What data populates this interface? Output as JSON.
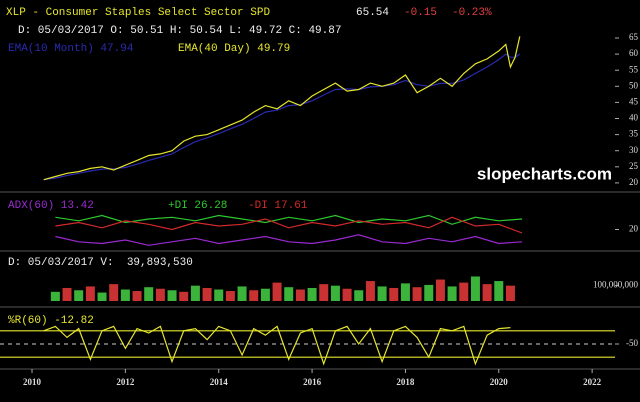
{
  "chart_data": [
    {
      "type": "line",
      "title": "XLP - Consumer Staples Select Sector SPD",
      "quote": {
        "last": "65.54",
        "change": "-0.15",
        "change_pct": "-0.23%"
      },
      "ohlc": "D: 05/03/2017 O: 50.51 H: 50.54 L: 49.72 C: 49.87",
      "watermark": "slopecharts.com",
      "xlim": [
        2009.314,
        2022.49
      ],
      "ylim": [
        17.8,
        76.8
      ],
      "yticks": [
        20,
        25,
        30,
        35,
        40,
        45,
        50,
        55,
        60,
        65
      ],
      "x": [
        2010.25,
        2010.5,
        2010.75,
        2011,
        2011.25,
        2011.5,
        2011.75,
        2012,
        2012.25,
        2012.5,
        2012.75,
        2013,
        2013.25,
        2013.5,
        2013.75,
        2014,
        2014.25,
        2014.5,
        2014.75,
        2015,
        2015.25,
        2015.5,
        2015.75,
        2016,
        2016.25,
        2016.5,
        2016.75,
        2017,
        2017.25,
        2017.5,
        2017.75,
        2018,
        2018.25,
        2018.5,
        2018.75,
        2019,
        2019.25,
        2019.5,
        2019.75,
        2020,
        2020.15,
        2020.25,
        2020.35,
        2020.45
      ],
      "series": [
        {
          "name": "EMA(10 Month) 47.94",
          "color": "#2a2ab0",
          "values": [
            21,
            21.5,
            22.3,
            23,
            23.7,
            24.3,
            24.4,
            24.8,
            25.8,
            27,
            28,
            29,
            31,
            32.8,
            34,
            35.3,
            36.8,
            38.2,
            40,
            42,
            42.6,
            44,
            44.3,
            45.5,
            47.3,
            49,
            49.2,
            49,
            49.8,
            50,
            50.5,
            51.8,
            50.5,
            50,
            50.9,
            50.9,
            52,
            54,
            56,
            58.3,
            60,
            59,
            59,
            60
          ]
        },
        {
          "name": "EMA(40 Day) 49.79",
          "color": "#e6e62e",
          "values": [
            21,
            22,
            23,
            23.5,
            24.5,
            25,
            24,
            25.5,
            27,
            28.5,
            29,
            30,
            33,
            34.5,
            35,
            36.5,
            38,
            39.5,
            42,
            44,
            43,
            45.5,
            44,
            47,
            49,
            51,
            48.5,
            49,
            51,
            50,
            51,
            53.5,
            48,
            50,
            52.5,
            50,
            54,
            57,
            58.5,
            61,
            63,
            56,
            59,
            65.5
          ]
        }
      ]
    },
    {
      "type": "line",
      "xlim": [
        2009.314,
        2022.49
      ],
      "ylim": [
        10,
        38
      ],
      "yticks": [
        20
      ],
      "x": [
        2010.5,
        2011,
        2011.5,
        2012,
        2012.5,
        2013,
        2013.5,
        2014,
        2014.5,
        2015,
        2015.5,
        2016,
        2016.5,
        2017,
        2017.5,
        2018,
        2018.5,
        2019,
        2019.5,
        2020,
        2020.5
      ],
      "series": [
        {
          "name": "ADX(60) 13.42",
          "color": "#9a2ad0",
          "values": [
            16,
            13,
            12,
            14,
            11,
            13,
            15,
            12,
            14,
            16,
            13,
            12,
            14,
            17,
            13,
            12,
            15,
            13,
            16,
            12,
            13
          ]
        },
        {
          "name": "+DI 26.28",
          "color": "#2ec82e",
          "values": [
            27,
            25,
            28,
            24,
            26,
            27,
            25,
            28,
            26,
            24,
            27,
            25,
            28,
            24,
            26,
            25,
            28,
            23,
            27,
            25,
            26
          ]
        },
        {
          "name": "-DI 17.61",
          "color": "#d22a2a",
          "values": [
            22,
            24,
            21,
            25,
            23,
            20,
            24,
            22,
            23,
            26,
            21,
            24,
            22,
            25,
            23,
            24,
            21,
            27,
            22,
            23,
            18
          ]
        }
      ]
    },
    {
      "type": "bar",
      "title": "D: 05/03/2017 V:  39,893,530",
      "xlim": [
        2009.314,
        2022.49
      ],
      "ylim": [
        0,
        300000000
      ],
      "yticks": [
        {
          "value": 100000000,
          "label": "100,000,000"
        }
      ],
      "colors": [
        "#3cb43c",
        "#c83232"
      ],
      "x": [
        2010.5,
        2010.75,
        2011,
        2011.25,
        2011.5,
        2011.75,
        2012,
        2012.25,
        2012.5,
        2012.75,
        2013,
        2013.25,
        2013.5,
        2013.75,
        2014,
        2014.25,
        2014.5,
        2014.75,
        2015,
        2015.25,
        2015.5,
        2015.75,
        2016,
        2016.25,
        2016.5,
        2016.75,
        2017,
        2017.25,
        2017.5,
        2017.75,
        2018,
        2018.25,
        2018.5,
        2018.75,
        2019,
        2019.25,
        2019.5,
        2019.75,
        2020,
        2020.25
      ],
      "values": [
        60000000,
        85000000,
        70000000,
        95000000,
        55000000,
        110000000,
        75000000,
        65000000,
        90000000,
        80000000,
        70000000,
        60000000,
        100000000,
        85000000,
        75000000,
        65000000,
        95000000,
        70000000,
        80000000,
        120000000,
        90000000,
        75000000,
        85000000,
        110000000,
        100000000,
        80000000,
        70000000,
        130000000,
        95000000,
        85000000,
        115000000,
        90000000,
        105000000,
        140000000,
        95000000,
        120000000,
        160000000,
        110000000,
        130000000,
        100000000
      ]
    },
    {
      "type": "line",
      "xlim": [
        2009.314,
        2022.49
      ],
      "ylim": [
        -100,
        0
      ],
      "yticks": [
        -50
      ],
      "levels": [
        -20,
        -80
      ],
      "xticks": [
        2010,
        2012,
        2014,
        2016,
        2018,
        2020,
        2022
      ],
      "x": [
        2010.25,
        2010.5,
        2010.75,
        2011,
        2011.25,
        2011.5,
        2011.75,
        2012,
        2012.25,
        2012.5,
        2012.75,
        2013,
        2013.25,
        2013.5,
        2013.75,
        2014,
        2014.25,
        2014.5,
        2014.75,
        2015,
        2015.25,
        2015.5,
        2015.75,
        2016,
        2016.25,
        2016.5,
        2016.75,
        2017,
        2017.25,
        2017.5,
        2017.75,
        2018,
        2018.25,
        2018.5,
        2018.75,
        2019,
        2019.25,
        2019.5,
        2019.75,
        2020,
        2020.25
      ],
      "series": [
        {
          "name": "%R(60) -12.82",
          "color": "#e6e62e",
          "values": [
            -20,
            -10,
            -35,
            -15,
            -85,
            -20,
            -10,
            -60,
            -15,
            -25,
            -10,
            -90,
            -20,
            -15,
            -40,
            -10,
            -20,
            -75,
            -15,
            -30,
            -10,
            -85,
            -25,
            -15,
            -95,
            -20,
            -10,
            -50,
            -15,
            -90,
            -20,
            -10,
            -35,
            -80,
            -15,
            -20,
            -10,
            -95,
            -30,
            -15,
            -12.82
          ]
        }
      ]
    }
  ]
}
